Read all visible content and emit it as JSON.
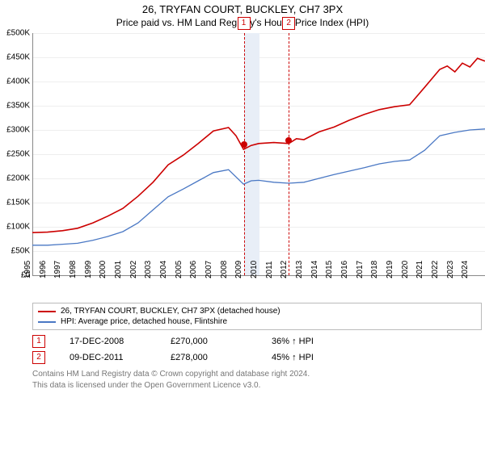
{
  "title": "26, TRYFAN COURT, BUCKLEY, CH7 3PX",
  "subtitle": "Price paid vs. HM Land Registry's House Price Index (HPI)",
  "chart": {
    "type": "line",
    "background_color": "#ffffff",
    "grid_color": "#eeeeee",
    "ylim": [
      0,
      500000
    ],
    "ytick_step": 50000,
    "y_labels": [
      "£0",
      "£50K",
      "£100K",
      "£150K",
      "£200K",
      "£250K",
      "£300K",
      "£350K",
      "£400K",
      "£450K",
      "£500K"
    ],
    "xlim": [
      1995,
      2025
    ],
    "x_labels": [
      "1995",
      "1996",
      "1997",
      "1998",
      "1999",
      "2000",
      "2001",
      "2002",
      "2003",
      "2004",
      "2005",
      "2006",
      "2007",
      "2008",
      "2009",
      "2010",
      "2011",
      "2012",
      "2013",
      "2014",
      "2015",
      "2016",
      "2017",
      "2018",
      "2019",
      "2020",
      "2021",
      "2022",
      "2023",
      "2024"
    ],
    "band": {
      "from": 2009,
      "to": 2010,
      "color": "#e8eef7"
    },
    "markers": [
      {
        "n": "1",
        "year": 2008.96,
        "price": 270000,
        "line_color": "#cc0000"
      },
      {
        "n": "2",
        "year": 2011.94,
        "price": 278000,
        "line_color": "#cc0000"
      }
    ],
    "series": [
      {
        "name": "property",
        "color": "#cc0000",
        "width": 1.6,
        "points": [
          [
            1995,
            88000
          ],
          [
            1996,
            89000
          ],
          [
            1997,
            92000
          ],
          [
            1998,
            97000
          ],
          [
            1999,
            108000
          ],
          [
            2000,
            122000
          ],
          [
            2001,
            138000
          ],
          [
            2002,
            163000
          ],
          [
            2003,
            192000
          ],
          [
            2004,
            228000
          ],
          [
            2005,
            248000
          ],
          [
            2006,
            272000
          ],
          [
            2007,
            298000
          ],
          [
            2008,
            305000
          ],
          [
            2008.5,
            288000
          ],
          [
            2009,
            260000
          ],
          [
            2009.5,
            268000
          ],
          [
            2010,
            272000
          ],
          [
            2011,
            274000
          ],
          [
            2012,
            272000
          ],
          [
            2012.5,
            282000
          ],
          [
            2013,
            280000
          ],
          [
            2014,
            296000
          ],
          [
            2015,
            306000
          ],
          [
            2016,
            320000
          ],
          [
            2017,
            332000
          ],
          [
            2018,
            342000
          ],
          [
            2019,
            348000
          ],
          [
            2020,
            352000
          ],
          [
            2021,
            388000
          ],
          [
            2022,
            425000
          ],
          [
            2022.5,
            432000
          ],
          [
            2023,
            420000
          ],
          [
            2023.5,
            438000
          ],
          [
            2024,
            430000
          ],
          [
            2024.5,
            448000
          ],
          [
            2025,
            442000
          ]
        ]
      },
      {
        "name": "hpi",
        "color": "#4a78c4",
        "width": 1.3,
        "points": [
          [
            1995,
            62000
          ],
          [
            1996,
            62000
          ],
          [
            1997,
            64000
          ],
          [
            1998,
            66000
          ],
          [
            1999,
            72000
          ],
          [
            2000,
            80000
          ],
          [
            2001,
            90000
          ],
          [
            2002,
            108000
          ],
          [
            2003,
            135000
          ],
          [
            2004,
            162000
          ],
          [
            2005,
            178000
          ],
          [
            2006,
            195000
          ],
          [
            2007,
            212000
          ],
          [
            2008,
            218000
          ],
          [
            2009,
            188000
          ],
          [
            2009.5,
            195000
          ],
          [
            2010,
            196000
          ],
          [
            2011,
            192000
          ],
          [
            2012,
            190000
          ],
          [
            2013,
            192000
          ],
          [
            2014,
            200000
          ],
          [
            2015,
            208000
          ],
          [
            2016,
            215000
          ],
          [
            2017,
            222000
          ],
          [
            2018,
            230000
          ],
          [
            2019,
            235000
          ],
          [
            2020,
            238000
          ],
          [
            2021,
            258000
          ],
          [
            2022,
            288000
          ],
          [
            2023,
            295000
          ],
          [
            2024,
            300000
          ],
          [
            2025,
            302000
          ]
        ]
      }
    ]
  },
  "legend": {
    "line1": {
      "color": "#cc0000",
      "label": "26, TRYFAN COURT, BUCKLEY, CH7 3PX (detached house)"
    },
    "line2": {
      "color": "#4a78c4",
      "label": "HPI: Average price, detached house, Flintshire"
    }
  },
  "sales": [
    {
      "n": "1",
      "date": "17-DEC-2008",
      "price": "£270,000",
      "delta": "36% ↑ HPI"
    },
    {
      "n": "2",
      "date": "09-DEC-2011",
      "price": "£278,000",
      "delta": "45% ↑ HPI"
    }
  ],
  "footer1": "Contains HM Land Registry data © Crown copyright and database right 2024.",
  "footer2": "This data is licensed under the Open Government Licence v3.0."
}
